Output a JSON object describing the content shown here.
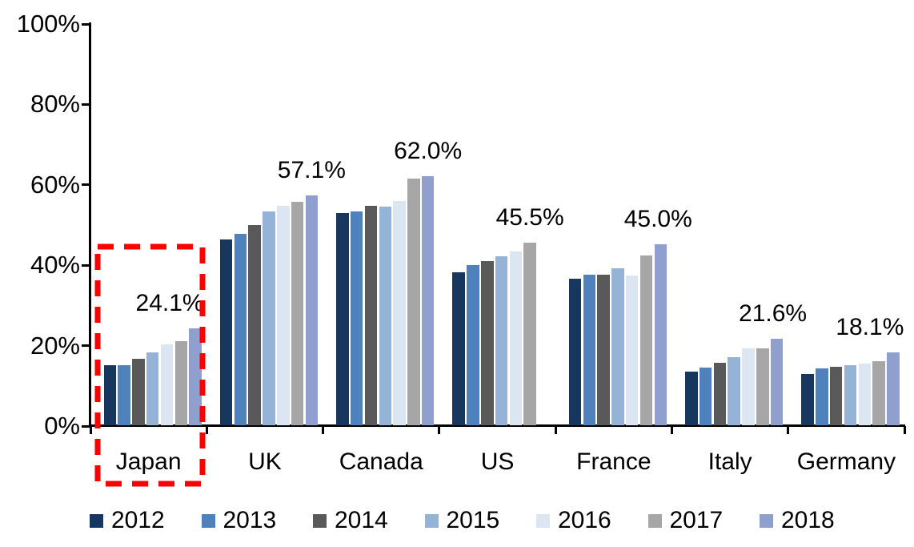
{
  "chart_data": {
    "type": "bar",
    "title": "",
    "xlabel": "",
    "ylabel": "",
    "categories": [
      "Japan",
      "UK",
      "Canada",
      "US",
      "France",
      "Italy",
      "Germany"
    ],
    "series": [
      {
        "name": "2012",
        "color": "#17375E",
        "values": [
          14.9,
          46.3,
          52.7,
          38.1,
          36.5,
          13.4,
          12.8
        ]
      },
      {
        "name": "2013",
        "color": "#4F81BD",
        "values": [
          15.0,
          47.6,
          53.1,
          39.9,
          37.4,
          14.4,
          14.2
        ]
      },
      {
        "name": "2014",
        "color": "#595959",
        "values": [
          16.6,
          49.8,
          54.6,
          40.8,
          37.4,
          15.5,
          14.5
        ]
      },
      {
        "name": "2015",
        "color": "#95B3D7",
        "values": [
          18.2,
          53.2,
          54.3,
          42.1,
          39.1,
          17.0,
          14.9
        ]
      },
      {
        "name": "2016",
        "color": "#DCE6F2",
        "values": [
          20.1,
          54.6,
          55.8,
          43.3,
          37.2,
          19.1,
          15.4
        ]
      },
      {
        "name": "2017",
        "color": "#A6A6A6",
        "values": [
          20.9,
          55.6,
          61.4,
          45.5,
          42.3,
          19.2,
          15.9
        ]
      },
      {
        "name": "2018",
        "color": "#8FA0CE",
        "values": [
          24.1,
          57.1,
          62.0,
          null,
          45.0,
          21.6,
          18.1
        ]
      }
    ],
    "data_labels": [
      "24.1%",
      "57.1%",
      "62.0%",
      "45.5%",
      "45.0%",
      "21.6%",
      "18.1%"
    ],
    "y_ticks": [
      "0%",
      "20%",
      "40%",
      "60%",
      "80%",
      "100%"
    ],
    "ylim": [
      0,
      100
    ],
    "grid": false,
    "legend_position": "bottom",
    "legend_entries": [
      "2012",
      "2013",
      "2014",
      "2015",
      "2016",
      "2017",
      "2018"
    ],
    "highlight": {
      "category": "Japan",
      "style": "red-dashed-rectangle",
      "color": "#FF0000"
    }
  }
}
